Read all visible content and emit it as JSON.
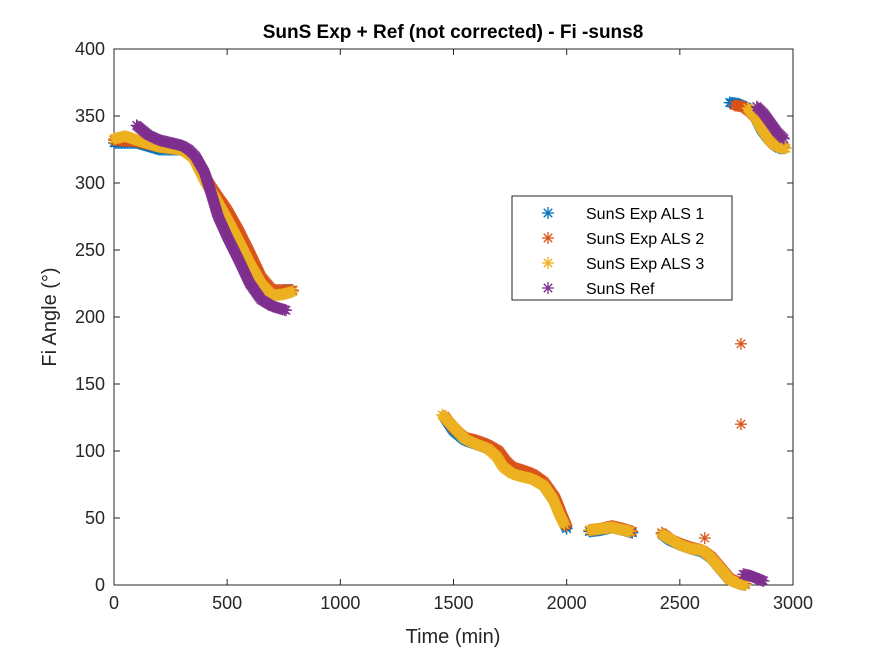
{
  "chart_data": {
    "type": "scatter",
    "title": "SunS Exp + Ref  (not corrected) - Fi -suns8",
    "xlabel": "Time (min)",
    "ylabel": "Fi Angle (°)",
    "xlim": [
      0,
      3000
    ],
    "ylim": [
      0,
      400
    ],
    "xticks": [
      0,
      500,
      1000,
      1500,
      2000,
      2500,
      3000
    ],
    "yticks": [
      0,
      50,
      100,
      150,
      200,
      250,
      300,
      350,
      400
    ],
    "grid": false,
    "legend_position": "center-right",
    "marker": "asterisk",
    "series": [
      {
        "name": "SunS Exp ALS 1",
        "color": "#0072BD",
        "segments": [
          [
            [
              0,
              330
            ],
            [
              100,
              330
            ],
            [
              200,
              325
            ],
            [
              300,
              325
            ],
            [
              350,
              320
            ],
            [
              400,
              305
            ],
            [
              450,
              290
            ],
            [
              500,
              278
            ],
            [
              550,
              262
            ],
            [
              600,
              245
            ],
            [
              650,
              228
            ],
            [
              700,
              218
            ],
            [
              750,
              220
            ],
            [
              790,
              220
            ]
          ],
          [
            [
              1460,
              125
            ],
            [
              1500,
              115
            ],
            [
              1550,
              108
            ],
            [
              1600,
              105
            ],
            [
              1650,
              102
            ],
            [
              1700,
              98
            ],
            [
              1730,
              90
            ],
            [
              1760,
              84
            ],
            [
              1800,
              82
            ],
            [
              1850,
              80
            ],
            [
              1900,
              74
            ],
            [
              1950,
              62
            ],
            [
              1980,
              50
            ],
            [
              2000,
              42
            ]
          ],
          [
            [
              2100,
              40
            ],
            [
              2150,
              41
            ],
            [
              2200,
              43
            ],
            [
              2250,
              41
            ],
            [
              2290,
              39
            ]
          ],
          [
            [
              2420,
              38
            ],
            [
              2460,
              33
            ],
            [
              2500,
              30
            ],
            [
              2550,
              27
            ],
            [
              2600,
              25
            ],
            [
              2640,
              20
            ],
            [
              2680,
              12
            ],
            [
              2720,
              4
            ],
            [
              2760,
              1
            ],
            [
              2790,
              0
            ]
          ],
          [
            [
              2720,
              360
            ],
            [
              2760,
              359
            ],
            [
              2800,
              356
            ],
            [
              2830,
              350
            ],
            [
              2860,
              340
            ],
            [
              2890,
              333
            ],
            [
              2920,
              328
            ],
            [
              2940,
              326
            ],
            [
              2960,
              326
            ]
          ]
        ]
      },
      {
        "name": "SunS Exp ALS 2",
        "color": "#D95319",
        "segments": [
          [
            [
              0,
              332
            ],
            [
              100,
              331
            ],
            [
              200,
              327
            ],
            [
              300,
              325
            ],
            [
              350,
              320
            ],
            [
              400,
              305
            ],
            [
              450,
              292
            ],
            [
              500,
              280
            ],
            [
              550,
              265
            ],
            [
              600,
              248
            ],
            [
              650,
              230
            ],
            [
              700,
              220
            ],
            [
              750,
              220
            ],
            [
              790,
              220
            ]
          ],
          [
            [
              1460,
              126
            ],
            [
              1500,
              117
            ],
            [
              1550,
              110
            ],
            [
              1600,
              108
            ],
            [
              1650,
              105
            ],
            [
              1700,
              100
            ],
            [
              1730,
              93
            ],
            [
              1760,
              88
            ],
            [
              1800,
              86
            ],
            [
              1850,
              83
            ],
            [
              1900,
              77
            ],
            [
              1950,
              65
            ],
            [
              1980,
              52
            ],
            [
              2000,
              44
            ]
          ],
          [
            [
              2100,
              41
            ],
            [
              2150,
              42
            ],
            [
              2200,
              44
            ],
            [
              2250,
              42
            ],
            [
              2290,
              40
            ]
          ],
          [
            [
              2420,
              39
            ],
            [
              2460,
              34
            ],
            [
              2500,
              31
            ],
            [
              2550,
              28
            ],
            [
              2600,
              26
            ],
            [
              2640,
              21
            ],
            [
              2680,
              13
            ],
            [
              2720,
              5
            ],
            [
              2760,
              2
            ],
            [
              2790,
              1
            ]
          ],
          [
            [
              2610,
              35
            ]
          ],
          [
            [
              2770,
              180
            ]
          ],
          [
            [
              2770,
              120
            ]
          ],
          [
            [
              2740,
              358
            ],
            [
              2780,
              357
            ],
            [
              2810,
              353
            ],
            [
              2840,
              348
            ],
            [
              2870,
              340
            ],
            [
              2900,
              332
            ],
            [
              2930,
              328
            ],
            [
              2960,
              327
            ]
          ]
        ]
      },
      {
        "name": "SunS Exp ALS 3",
        "color": "#EDB120",
        "segments": [
          [
            [
              0,
              333
            ],
            [
              50,
              335
            ],
            [
              100,
              332
            ],
            [
              200,
              327
            ],
            [
              300,
              325
            ],
            [
              350,
              319
            ],
            [
              400,
              302
            ],
            [
              450,
              288
            ],
            [
              500,
              273
            ],
            [
              550,
              257
            ],
            [
              600,
              240
            ],
            [
              650,
              225
            ],
            [
              700,
              216
            ],
            [
              750,
              217
            ],
            [
              790,
              219
            ]
          ],
          [
            [
              1450,
              127
            ],
            [
              1500,
              118
            ],
            [
              1550,
              109
            ],
            [
              1600,
              105
            ],
            [
              1650,
              102
            ],
            [
              1690,
              96
            ],
            [
              1720,
              88
            ],
            [
              1760,
              83
            ],
            [
              1800,
              81
            ],
            [
              1850,
              79
            ],
            [
              1900,
              74
            ],
            [
              1940,
              64
            ],
            [
              1970,
              52
            ],
            [
              1990,
              45
            ]
          ],
          [
            [
              2100,
              41
            ],
            [
              2150,
              42
            ],
            [
              2200,
              43
            ],
            [
              2250,
              41
            ],
            [
              2280,
              40
            ]
          ],
          [
            [
              2420,
              38
            ],
            [
              2460,
              34
            ],
            [
              2500,
              30
            ],
            [
              2550,
              27
            ],
            [
              2600,
              26
            ],
            [
              2640,
              20
            ],
            [
              2680,
              12
            ],
            [
              2720,
              4
            ],
            [
              2760,
              1
            ],
            [
              2790,
              0
            ]
          ],
          [
            [
              2800,
              356
            ],
            [
              2830,
              350
            ],
            [
              2860,
              341
            ],
            [
              2890,
              333
            ],
            [
              2920,
              328
            ],
            [
              2950,
              326
            ],
            [
              2970,
              326
            ]
          ]
        ]
      },
      {
        "name": "SunS Ref",
        "color": "#7E2F8E",
        "segments": [
          [
            [
              100,
              343
            ],
            [
              150,
              336
            ],
            [
              200,
              332
            ],
            [
              250,
              330
            ],
            [
              300,
              328
            ],
            [
              330,
              325
            ],
            [
              360,
              320
            ],
            [
              400,
              308
            ],
            [
              430,
              292
            ],
            [
              460,
              275
            ],
            [
              500,
              260
            ],
            [
              550,
              243
            ],
            [
              600,
              225
            ],
            [
              650,
              213
            ],
            [
              700,
              208
            ],
            [
              760,
              205
            ]
          ],
          [
            [
              2780,
              8
            ],
            [
              2810,
              7
            ],
            [
              2840,
              5
            ],
            [
              2870,
              3
            ]
          ],
          [
            [
              2840,
              357
            ],
            [
              2870,
              352
            ],
            [
              2900,
              345
            ],
            [
              2930,
              338
            ],
            [
              2960,
              333
            ]
          ]
        ]
      }
    ]
  }
}
